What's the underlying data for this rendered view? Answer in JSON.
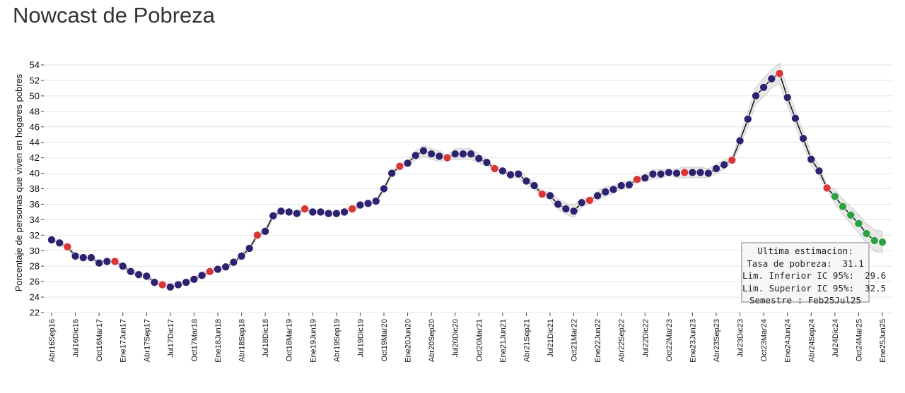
{
  "page": {
    "title": "Nowcast de Pobreza"
  },
  "chart_data": {
    "type": "line",
    "title": "",
    "xlabel": "",
    "ylabel": "Porcentaje de personas que viven en hogares pobres",
    "ylim": [
      22,
      55
    ],
    "yticks": [
      22,
      24,
      26,
      28,
      30,
      32,
      34,
      36,
      38,
      40,
      42,
      44,
      46,
      48,
      50,
      52,
      54
    ],
    "grid": "horizontal",
    "xtick_labels": [
      "Abr16Sep16",
      "Jul16Dic16",
      "Oct16Mar17",
      "Ene17Jun17",
      "Abr17Sep17",
      "Jul17Dic17",
      "Oct17Mar18",
      "Ene18Jun18",
      "Abr18Sep18",
      "Jul18Dic18",
      "Oct18Mar19",
      "Ene19Jun19",
      "Abr19Sep19",
      "Jul19Dic19",
      "Oct19Mar20",
      "Ene20Jun20",
      "Abr20Sep20",
      "Jul20Dic20",
      "Oct20Mar21",
      "Ene21Jun21",
      "Abr21Sep21",
      "Jul21Dic21",
      "Oct21Mar22",
      "Ene22Jun22",
      "Abr22Sep22",
      "Jul22Dic22",
      "Oct22Mar23",
      "Ene23Jun23",
      "Abr23Sep23",
      "Jul23Dic23",
      "Oct23Mar24",
      "Ene24Jun24",
      "Abr24Sep24",
      "Jul24Dic24",
      "Oct24Mar25",
      "Ene25Jun25"
    ],
    "point_colors": {
      "estimate": "#2e2170",
      "official": "#d93636",
      "forecast": "#2ea043"
    },
    "line_color": "#111111",
    "band_color": "#cccccc",
    "series": [
      {
        "values": [
          31.4,
          31.0,
          30.5,
          29.3,
          29.1,
          29.1,
          28.4,
          28.6,
          28.6,
          28.0,
          27.3,
          26.9,
          26.7,
          25.9,
          25.6,
          25.3,
          25.6,
          25.9,
          26.3,
          26.8,
          27.3,
          27.6,
          27.9,
          28.5,
          29.3,
          30.3,
          32.0,
          32.5,
          34.5,
          35.1,
          35.0,
          34.8,
          35.4,
          35.0,
          35.0,
          34.8,
          34.8,
          35.0,
          35.4,
          35.9,
          36.1,
          36.4,
          38.0,
          40.0,
          40.9,
          41.3,
          42.3,
          42.9,
          42.5,
          42.2,
          42.0,
          42.5,
          42.5,
          42.5,
          41.9,
          41.4,
          40.6,
          40.3,
          39.8,
          39.9,
          39.0,
          38.4,
          37.3,
          37.1,
          36.0,
          35.4,
          35.1,
          36.2,
          36.5,
          37.1,
          37.6,
          37.9,
          38.4,
          38.5,
          39.2,
          39.4,
          39.9,
          39.9,
          40.1,
          40.0,
          40.1,
          40.1,
          40.1,
          40.0,
          40.6,
          41.1,
          41.7,
          44.2,
          47.0,
          50.0,
          51.1,
          52.2,
          52.9,
          49.8,
          47.1,
          44.5,
          41.8,
          40.3,
          38.1,
          37.0,
          35.7,
          34.6,
          33.5,
          32.2,
          31.3,
          31.1
        ],
        "point_types": [
          "e",
          "e",
          "o",
          "e",
          "e",
          "e",
          "e",
          "e",
          "o",
          "e",
          "e",
          "e",
          "e",
          "e",
          "o",
          "e",
          "e",
          "e",
          "e",
          "e",
          "o",
          "e",
          "e",
          "e",
          "e",
          "e",
          "o",
          "e",
          "e",
          "e",
          "e",
          "e",
          "o",
          "e",
          "e",
          "e",
          "e",
          "e",
          "o",
          "e",
          "e",
          "e",
          "e",
          "e",
          "o",
          "e",
          "e",
          "e",
          "e",
          "e",
          "o",
          "e",
          "e",
          "e",
          "e",
          "e",
          "o",
          "e",
          "e",
          "e",
          "e",
          "e",
          "o",
          "e",
          "e",
          "e",
          "e",
          "e",
          "o",
          "e",
          "e",
          "e",
          "e",
          "e",
          "o",
          "e",
          "e",
          "e",
          "e",
          "e",
          "o",
          "e",
          "e",
          "e",
          "e",
          "e",
          "o",
          "e",
          "e",
          "e",
          "e",
          "e",
          "o",
          "e",
          "e",
          "e",
          "e",
          "e",
          "o",
          "f",
          "f",
          "f",
          "f",
          "f",
          "f",
          "f"
        ],
        "ci_half_width": [
          0.3,
          0.3,
          0.3,
          0.3,
          0.3,
          0.3,
          0.3,
          0.3,
          0.3,
          0.3,
          0.3,
          0.3,
          0.3,
          0.3,
          0.3,
          0.3,
          0.3,
          0.3,
          0.3,
          0.3,
          0.3,
          0.3,
          0.3,
          0.3,
          0.3,
          0.3,
          0.3,
          0.3,
          0.3,
          0.3,
          0.3,
          0.3,
          0.3,
          0.3,
          0.3,
          0.3,
          0.3,
          0.3,
          0.3,
          0.3,
          0.3,
          0.3,
          0.3,
          0.3,
          0.3,
          0.3,
          0.6,
          0.7,
          0.7,
          0.7,
          0.3,
          0.7,
          0.7,
          0.7,
          0.6,
          0.4,
          0.3,
          0.3,
          0.4,
          0.5,
          0.5,
          0.5,
          0.3,
          0.5,
          0.7,
          0.7,
          0.8,
          0.6,
          0.3,
          0.6,
          0.6,
          0.5,
          0.5,
          0.5,
          0.3,
          0.5,
          0.6,
          0.6,
          0.3,
          0.6,
          0.7,
          0.7,
          0.7,
          0.6,
          0.6,
          0.6,
          0.3,
          0.8,
          1.0,
          1.1,
          1.2,
          1.2,
          1.3,
          1.1,
          1.0,
          0.9,
          0.8,
          0.7,
          0.3,
          0.9,
          1.0,
          1.1,
          1.2,
          1.3,
          1.4,
          1.4
        ]
      }
    ],
    "tooltip": {
      "line1": "Ultima estimacion:",
      "line2": "Tasa de pobreza:  31.1",
      "line3": "Lim. Inferior IC 95%:  29.6",
      "line4": "Lim. Superior IC 95%:  32.5",
      "line5": "Semestre : Feb25Jul25"
    }
  }
}
